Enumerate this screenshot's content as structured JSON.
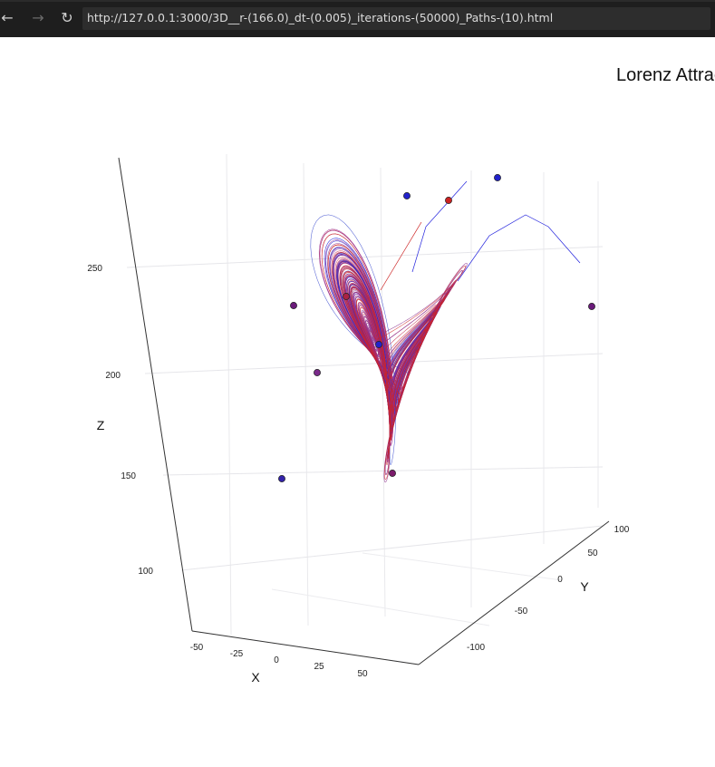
{
  "browser": {
    "back_icon": "arrow-left-icon",
    "forward_icon": "arrow-right-icon",
    "reload_icon": "reload-icon",
    "url": "http://127.0.0.1:3000/3D__r-(166.0)_dt-(0.005)_iterations-(50000)_Paths-(10).html"
  },
  "plot": {
    "title": "Lorenz Attrac"
  },
  "chart_data": {
    "type": "scatter3d",
    "title": "Lorenz Attrac",
    "axes": {
      "x": {
        "label": "X",
        "ticks": [
          -50,
          -25,
          0,
          25,
          50
        ]
      },
      "y": {
        "label": "Y",
        "ticks": [
          -100,
          -50,
          0,
          50,
          100
        ]
      },
      "z": {
        "label": "Z",
        "ticks": [
          100,
          150,
          200,
          250
        ]
      }
    },
    "grid": true,
    "series": [],
    "colors": {
      "red": "#cc2222",
      "blue": "#2222dd",
      "purple": "#6a1a7a"
    }
  }
}
